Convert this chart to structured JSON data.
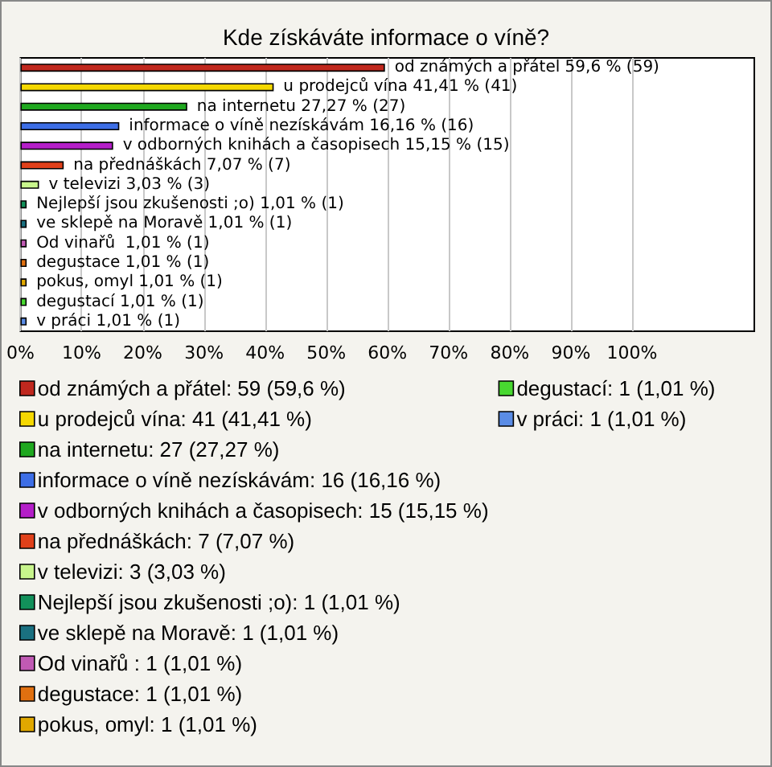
{
  "chart_data": {
    "type": "bar",
    "orientation": "horizontal",
    "stacked": true,
    "title": "Kde získáváte informace o víně?",
    "categories": [
      null,
      null,
      null,
      null,
      null,
      null,
      null,
      null,
      null,
      null,
      null,
      null,
      null,
      null
    ],
    "series": [
      {
        "name": "od známých a přátel: 59 (59,6 %)",
        "color": "#c0281e",
        "values": [
          59.6,
          null,
          null,
          null,
          null,
          null,
          null,
          null,
          null,
          null,
          null,
          null,
          null,
          null
        ],
        "value_labels": [
          "od známých a přátel 59,6 % (59)",
          null,
          null,
          null,
          null,
          null,
          null,
          null,
          null,
          null,
          null,
          null,
          null,
          null
        ]
      },
      {
        "name": "u prodejců vína: 41 (41,41 %)",
        "color": "#f5d800",
        "values": [
          null,
          41.41,
          null,
          null,
          null,
          null,
          null,
          null,
          null,
          null,
          null,
          null,
          null,
          null
        ],
        "value_labels": [
          null,
          "u prodejců vína 41,41 % (41)",
          null,
          null,
          null,
          null,
          null,
          null,
          null,
          null,
          null,
          null,
          null,
          null
        ]
      },
      {
        "name": "na internetu: 27 (27,27 %)",
        "color": "#1fa81f",
        "values": [
          null,
          null,
          27.27,
          null,
          null,
          null,
          null,
          null,
          null,
          null,
          null,
          null,
          null,
          null
        ],
        "value_labels": [
          null,
          null,
          "na internetu 27,27 % (27)",
          null,
          null,
          null,
          null,
          null,
          null,
          null,
          null,
          null,
          null,
          null
        ]
      },
      {
        "name": "informace o víně nezískávám: 16 (16,16 %)",
        "color": "#3d6ee6",
        "values": [
          null,
          null,
          null,
          16.16,
          null,
          null,
          null,
          null,
          null,
          null,
          null,
          null,
          null,
          null
        ],
        "value_labels": [
          null,
          null,
          null,
          "informace o víně nezískávám 16,16 % (16)",
          null,
          null,
          null,
          null,
          null,
          null,
          null,
          null,
          null,
          null
        ]
      },
      {
        "name": "v odborných knihách a časopisech: 15 (15,15 %)",
        "color": "#b41ec8",
        "values": [
          null,
          null,
          null,
          null,
          15.15,
          null,
          null,
          null,
          null,
          null,
          null,
          null,
          null,
          null
        ],
        "value_labels": [
          null,
          null,
          null,
          null,
          "v odborných knihách a časopisech 15,15 % (15)",
          null,
          null,
          null,
          null,
          null,
          null,
          null,
          null,
          null
        ]
      },
      {
        "name": "na přednáškách: 7 (7,07 %)",
        "color": "#e0401a",
        "values": [
          null,
          null,
          null,
          null,
          null,
          7.07,
          null,
          null,
          null,
          null,
          null,
          null,
          null,
          null
        ],
        "value_labels": [
          null,
          null,
          null,
          null,
          null,
          "na přednáškách 7,07 % (7)",
          null,
          null,
          null,
          null,
          null,
          null,
          null,
          null
        ]
      },
      {
        "name": "v televizi: 3 (3,03 %)",
        "color": "#c8f58c",
        "values": [
          null,
          null,
          null,
          null,
          null,
          null,
          3.03,
          null,
          null,
          null,
          null,
          null,
          null,
          null
        ],
        "value_labels": [
          null,
          null,
          null,
          null,
          null,
          null,
          "v televizi 3,03 % (3)",
          null,
          null,
          null,
          null,
          null,
          null,
          null
        ]
      },
      {
        "name": "Nejlepší jsou zkušenosti ;o): 1 (1,01 %)",
        "color": "#12905a",
        "values": [
          null,
          null,
          null,
          null,
          null,
          null,
          null,
          1.01,
          null,
          null,
          null,
          null,
          null,
          null
        ],
        "value_labels": [
          null,
          null,
          null,
          null,
          null,
          null,
          null,
          "Nejlepší jsou zkušenosti ;o) 1,01 % (1)",
          null,
          null,
          null,
          null,
          null,
          null
        ]
      },
      {
        "name": "ve sklepě na Moravě: 1 (1,01 %)",
        "color": "#1a7080",
        "values": [
          null,
          null,
          null,
          null,
          null,
          null,
          null,
          null,
          1.01,
          null,
          null,
          null,
          null,
          null
        ],
        "value_labels": [
          null,
          null,
          null,
          null,
          null,
          null,
          null,
          null,
          "ve sklepě na Moravě 1,01 % (1)",
          null,
          null,
          null,
          null,
          null
        ]
      },
      {
        "name": "Od vinařů : 1 (1,01 %)",
        "color": "#c05ab4",
        "values": [
          null,
          null,
          null,
          null,
          null,
          null,
          null,
          null,
          null,
          1.01,
          null,
          null,
          null,
          null
        ],
        "value_labels": [
          null,
          null,
          null,
          null,
          null,
          null,
          null,
          null,
          null,
          "Od vinařů  1,01 % (1)",
          null,
          null,
          null,
          null
        ]
      },
      {
        "name": "degustace: 1 (1,01 %)",
        "color": "#e07010",
        "values": [
          null,
          null,
          null,
          null,
          null,
          null,
          null,
          null,
          null,
          null,
          1.01,
          null,
          null,
          null
        ],
        "value_labels": [
          null,
          null,
          null,
          null,
          null,
          null,
          null,
          null,
          null,
          null,
          "degustace 1,01 % (1)",
          null,
          null,
          null
        ]
      },
      {
        "name": "pokus, omyl: 1 (1,01 %)",
        "color": "#e0a800",
        "values": [
          null,
          null,
          null,
          null,
          null,
          null,
          null,
          null,
          null,
          null,
          null,
          1.01,
          null,
          null
        ],
        "value_labels": [
          null,
          null,
          null,
          null,
          null,
          null,
          null,
          null,
          null,
          null,
          null,
          "pokus, omyl 1,01 % (1)",
          null,
          null
        ]
      },
      {
        "name": "degustací: 1 (1,01 %)",
        "color": "#48d830",
        "values": [
          null,
          null,
          null,
          null,
          null,
          null,
          null,
          null,
          null,
          null,
          null,
          null,
          1.01,
          null
        ],
        "value_labels": [
          null,
          null,
          null,
          null,
          null,
          null,
          null,
          null,
          null,
          null,
          null,
          null,
          "degustací 1,01 % (1)",
          null
        ]
      },
      {
        "name": "v práci: 1 (1,01 %)",
        "color": "#5a8ce6",
        "values": [
          null,
          null,
          null,
          null,
          null,
          null,
          null,
          null,
          null,
          null,
          null,
          null,
          null,
          1.01
        ],
        "value_labels": [
          null,
          null,
          null,
          null,
          null,
          null,
          null,
          null,
          null,
          null,
          null,
          null,
          null,
          "v práci 1,01 % (1)"
        ]
      }
    ],
    "xlim": [
      0,
      120
    ],
    "xticks": [
      {
        "value": 0,
        "label": "0%"
      },
      {
        "value": 10,
        "label": "10%"
      },
      {
        "value": 20,
        "label": "20%"
      },
      {
        "value": 30,
        "label": "30%"
      },
      {
        "value": 40,
        "label": "40%"
      },
      {
        "value": 50,
        "label": "50%"
      },
      {
        "value": 60,
        "label": "60%"
      },
      {
        "value": 70,
        "label": "70%"
      },
      {
        "value": 80,
        "label": "80%"
      },
      {
        "value": 90,
        "label": "90%"
      },
      {
        "value": 100,
        "label": "100%"
      }
    ],
    "grid": "x",
    "tick_labels": "x",
    "legend": "bottom"
  }
}
